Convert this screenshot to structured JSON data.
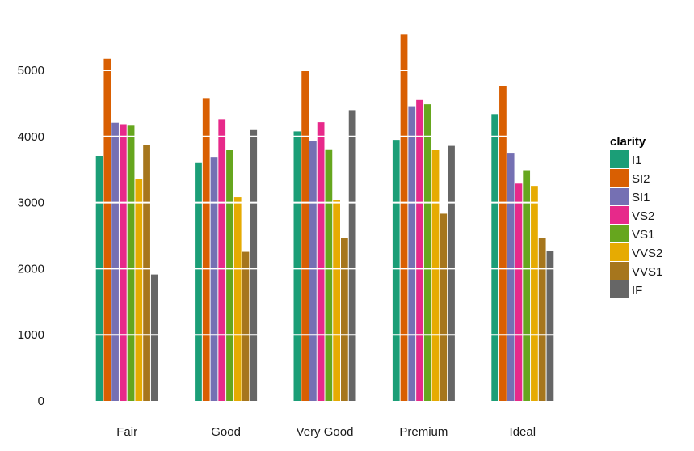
{
  "chart_data": {
    "type": "bar",
    "title": "",
    "xlabel": "",
    "ylabel": "",
    "categories": [
      "Fair",
      "Good",
      "Very Good",
      "Premium",
      "Ideal"
    ],
    "series": [
      {
        "name": "I1",
        "color": "#1b9e77",
        "values": [
          3704,
          3597,
          4078,
          3947,
          4336
        ]
      },
      {
        "name": "SI2",
        "color": "#d95f02",
        "values": [
          5174,
          4580,
          4989,
          5546,
          4756
        ]
      },
      {
        "name": "SI1",
        "color": "#7570b3",
        "values": [
          4209,
          3690,
          3932,
          4455,
          3752
        ]
      },
      {
        "name": "VS2",
        "color": "#e7298a",
        "values": [
          4175,
          4262,
          4216,
          4550,
          3285
        ]
      },
      {
        "name": "VS1",
        "color": "#66a61e",
        "values": [
          4165,
          3801,
          3805,
          4485,
          3490
        ]
      },
      {
        "name": "VVS2",
        "color": "#e6ab02",
        "values": [
          3350,
          3080,
          3038,
          3795,
          3250
        ]
      },
      {
        "name": "VVS1",
        "color": "#a6761d",
        "values": [
          3871,
          2255,
          2460,
          2831,
          2468
        ]
      },
      {
        "name": "IF",
        "color": "#666666",
        "values": [
          1912,
          4098,
          4396,
          3856,
          2273
        ]
      }
    ],
    "y_ticks": [
      "0",
      "1000",
      "2000",
      "3000",
      "4000",
      "5000"
    ],
    "y_tick_values": [
      0,
      1000,
      2000,
      3000,
      4000,
      5000
    ],
    "ylim": [
      0,
      5700
    ],
    "grid": "major-y, white over bars",
    "legend": {
      "title": "clarity",
      "position": "right"
    }
  }
}
